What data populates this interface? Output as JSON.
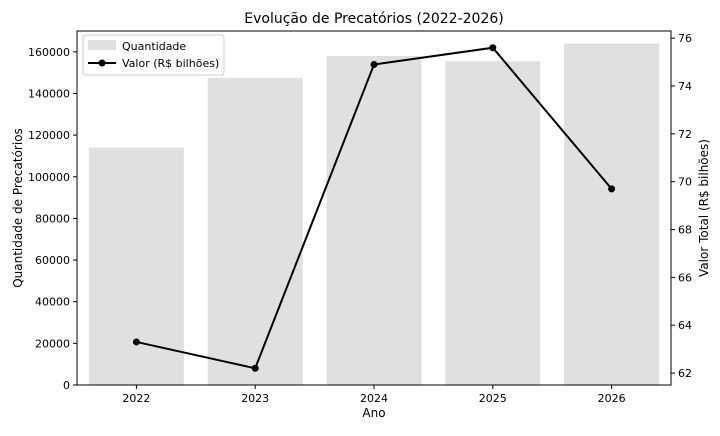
{
  "chart_data": {
    "type": "bar+line",
    "title": "Evolução de Precatórios (2022-2026)",
    "xlabel": "Ano",
    "ylabel_left": "Quantidade de Precatórios",
    "ylabel_right": "Valor Total (R$ bilhões)",
    "categories": [
      "2022",
      "2023",
      "2024",
      "2025",
      "2026"
    ],
    "ylim_left": [
      0,
      170000
    ],
    "yticks_left": [
      "0",
      "20000",
      "40000",
      "60000",
      "80000",
      "100000",
      "120000",
      "140000",
      "160000"
    ],
    "ylim_right": [
      61.5,
      76.3
    ],
    "yticks_right": [
      "62",
      "64",
      "66",
      "68",
      "70",
      "72",
      "74",
      "76"
    ],
    "grid": false,
    "legend_position": "top-left",
    "series": [
      {
        "name": "Quantidade",
        "type": "bar",
        "axis": "left",
        "color": "#e0e0e0",
        "values": [
          114000,
          147500,
          158000,
          155500,
          164000
        ]
      },
      {
        "name": "Valor (R$ bilhões)",
        "type": "line",
        "axis": "right",
        "color": "#000000",
        "marker": "circle",
        "values": [
          63.3,
          62.2,
          74.9,
          75.6,
          69.7
        ]
      }
    ]
  }
}
